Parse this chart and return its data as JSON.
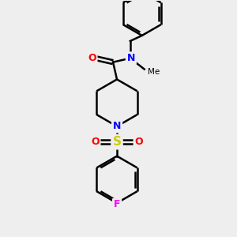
{
  "background_color": "#eeeeee",
  "bond_color": "#000000",
  "bond_width": 1.8,
  "atom_colors": {
    "N": "#0000ff",
    "O": "#ff0000",
    "S": "#cccc00",
    "F": "#ff00ff",
    "C": "#000000"
  },
  "figsize": [
    3.0,
    3.0
  ],
  "dpi": 100,
  "ring_bond_color": "#000000"
}
